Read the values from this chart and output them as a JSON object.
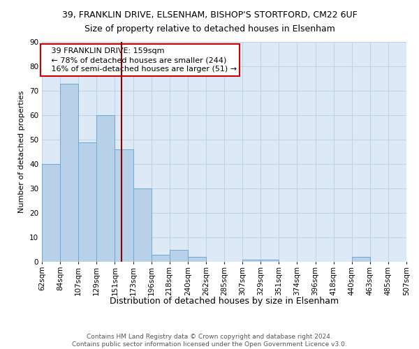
{
  "title1": "39, FRANKLIN DRIVE, ELSENHAM, BISHOP'S STORTFORD, CM22 6UF",
  "title2": "Size of property relative to detached houses in Elsenham",
  "xlabel": "Distribution of detached houses by size in Elsenham",
  "ylabel": "Number of detached properties",
  "footer1": "Contains HM Land Registry data © Crown copyright and database right 2024.",
  "footer2": "Contains public sector information licensed under the Open Government Licence v3.0.",
  "annotation_line1": "   39 FRANKLIN DRIVE: 159sqm   ",
  "annotation_line2": "   ← 78% of detached houses are smaller (244)",
  "annotation_line3": "   16% of semi-detached houses are larger (51) →",
  "bar_values": [
    40,
    73,
    49,
    60,
    46,
    30,
    3,
    5,
    2,
    0,
    0,
    1,
    1,
    0,
    0,
    0,
    0,
    2,
    0,
    0
  ],
  "bin_labels": [
    "62sqm",
    "84sqm",
    "107sqm",
    "129sqm",
    "151sqm",
    "173sqm",
    "196sqm",
    "218sqm",
    "240sqm",
    "262sqm",
    "285sqm",
    "307sqm",
    "329sqm",
    "351sqm",
    "374sqm",
    "396sqm",
    "418sqm",
    "440sqm",
    "463sqm",
    "485sqm",
    "507sqm"
  ],
  "bar_color": "#b8d0e8",
  "bar_edge_color": "#6aaad4",
  "red_line_color": "#8b0000",
  "annotation_box_color": "#cc0000",
  "ylim": [
    0,
    90
  ],
  "yticks": [
    0,
    10,
    20,
    30,
    40,
    50,
    60,
    70,
    80,
    90
  ],
  "grid_color": "#c0d4e8",
  "bg_color": "#ddeaf6",
  "title1_fontsize": 9,
  "title2_fontsize": 9,
  "xlabel_fontsize": 9,
  "ylabel_fontsize": 8,
  "tick_fontsize": 7.5,
  "footer_fontsize": 6.5,
  "annotation_fontsize": 8
}
